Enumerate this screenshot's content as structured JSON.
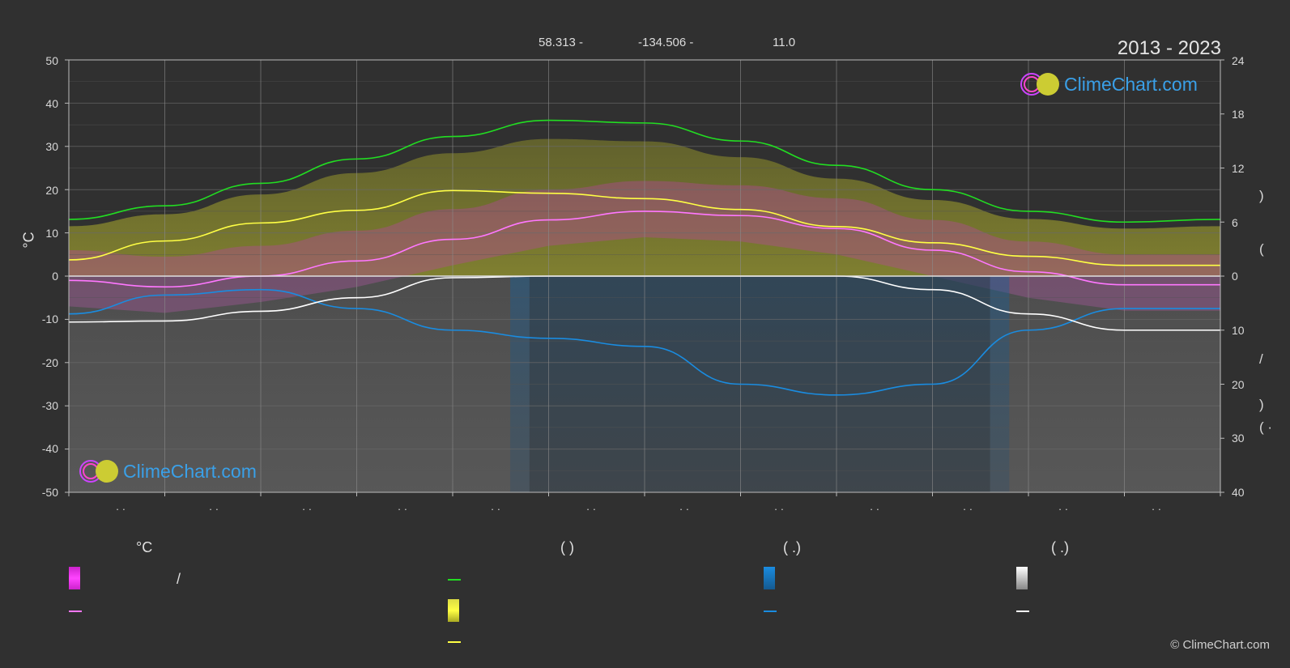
{
  "header": {
    "lat": "58.313 -",
    "lon": "-134.506 -",
    "elev": "11.0",
    "period": "2013 - 2023"
  },
  "brand": {
    "logo_text": "ClimeChart.com",
    "copyright": "© ClimeChart.com"
  },
  "axes": {
    "left_unit": "°C",
    "left_ticks": [
      "50",
      "40",
      "30",
      "20",
      "10",
      "0",
      "-10",
      "-20",
      "-30",
      "-40",
      "-50"
    ],
    "right_ticks_top": [
      "24",
      "18",
      "12",
      "6",
      "0"
    ],
    "right_ticks_bottom": [
      "10",
      "20",
      "30",
      "40"
    ],
    "right_fragments": [
      ")",
      "(",
      "/",
      ")",
      "(  ·"
    ],
    "x_ticks": [
      "· ·",
      "· ·",
      "· ·",
      "· ·",
      "· ·",
      "· ·",
      "· ·",
      "· ·",
      "· ·",
      "· ·",
      "· ·",
      "· ·"
    ]
  },
  "legend": {
    "temp_head": "°C",
    "temp_range_sep": "/",
    "sun_head": "(          )",
    "rain_head": "(   .)",
    "snow_head": "(   .)"
  },
  "colors": {
    "background": "#303030",
    "daylight": "#22dd22",
    "sunshine": "#ffff44",
    "temp_max": "#ff44ff",
    "temp_mean": "#ff77ff",
    "rain": "#1a8ce0",
    "snow": "#ffffff"
  },
  "chart_data": {
    "type": "line",
    "x": [
      0,
      1,
      2,
      3,
      4,
      5,
      6,
      7,
      8,
      9,
      10,
      11,
      12
    ],
    "ylim_left": [
      -50,
      50
    ],
    "ylim_right_top": [
      0,
      24
    ],
    "ylim_right_bottom": [
      0,
      40
    ],
    "grid": true,
    "series": [
      {
        "key": "daylight",
        "axis": "hours",
        "values": [
          6.3,
          7.8,
          10.3,
          13.0,
          15.5,
          17.3,
          17.0,
          15.0,
          12.3,
          9.6,
          7.2,
          6.0,
          6.3
        ]
      },
      {
        "key": "sunshine",
        "axis": "hours",
        "values": [
          1.8,
          3.9,
          5.9,
          7.3,
          9.5,
          9.2,
          8.6,
          7.4,
          5.5,
          3.7,
          2.2,
          1.2,
          1.2
        ]
      },
      {
        "key": "temp_mean",
        "axis": "celsius",
        "values": [
          -1,
          -2.5,
          0,
          3.5,
          8.5,
          13,
          15,
          14,
          11,
          6,
          1,
          -2,
          -2
        ]
      },
      {
        "key": "rain",
        "axis": "mm",
        "values": [
          7,
          3.5,
          2.5,
          6,
          10,
          11.5,
          13,
          20,
          22,
          20,
          10,
          6,
          6
        ]
      },
      {
        "key": "snow",
        "axis": "mm",
        "values": [
          8.5,
          8.3,
          6.5,
          4,
          0.3,
          0,
          0,
          0,
          0,
          2.5,
          7,
          10,
          10
        ]
      }
    ]
  }
}
